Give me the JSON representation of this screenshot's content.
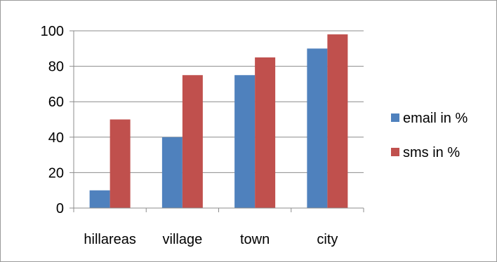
{
  "chart_data": {
    "type": "bar",
    "categories": [
      "hillareas",
      "village",
      "town",
      "city"
    ],
    "series": [
      {
        "name": "email in %",
        "values": [
          10,
          40,
          75,
          90
        ],
        "color": "#4f81bd"
      },
      {
        "name": "sms in %",
        "values": [
          50,
          75,
          85,
          98
        ],
        "color": "#c0504d"
      }
    ],
    "title": "",
    "xlabel": "",
    "ylabel": "",
    "ylim": [
      0,
      100
    ],
    "yticks": [
      0,
      20,
      40,
      60,
      80,
      100
    ],
    "grid": true,
    "legend_position": "right"
  }
}
